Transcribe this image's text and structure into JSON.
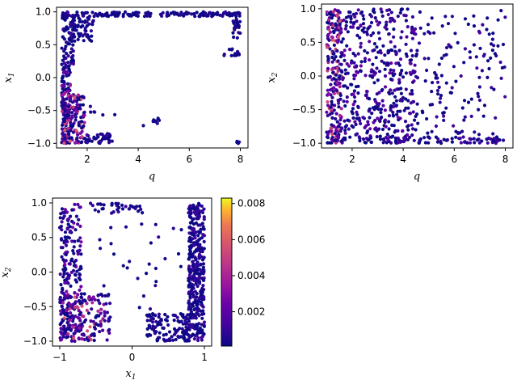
{
  "chart_data": [
    {
      "type": "scatter",
      "panel": "top-left",
      "xlabel": "q",
      "ylabel": "x",
      "ylabel_sub": "1",
      "xlim": [
        0.8,
        8.3
      ],
      "ylim": [
        -1.07,
        1.07
      ],
      "xticks": [
        2,
        4,
        6,
        8
      ],
      "xtick_labels": [
        "2",
        "4",
        "6",
        "8"
      ],
      "yticks": [
        -1.0,
        -0.5,
        0.0,
        0.5,
        1.0
      ],
      "ytick_labels": [
        "−1.0",
        "−0.5",
        "0.0",
        "0.5",
        "1.0"
      ],
      "grid": false,
      "colormap": "plasma",
      "clusters": [
        {
          "x": [
            1.0,
            8.0
          ],
          "y": [
            0.93,
            1.0
          ],
          "n": 180,
          "c": [
            0.0,
            0.001
          ]
        },
        {
          "x": [
            1.0,
            1.5
          ],
          "y": [
            0.2,
            1.0
          ],
          "n": 70,
          "c": [
            0.0,
            0.0015
          ]
        },
        {
          "x": [
            1.4,
            2.3
          ],
          "y": [
            0.55,
            0.95
          ],
          "n": 55,
          "c": [
            0.0,
            0.001
          ]
        },
        {
          "x": [
            7.7,
            8.0
          ],
          "y": [
            0.6,
            1.0
          ],
          "n": 30,
          "c": [
            0.0,
            0.001
          ]
        },
        {
          "x": [
            7.3,
            8.0
          ],
          "y": [
            0.3,
            0.45
          ],
          "n": 14,
          "c": [
            0.0,
            0.001
          ]
        },
        {
          "x": [
            1.0,
            1.35
          ],
          "y": [
            -1.0,
            0.2
          ],
          "n": 110,
          "c": [
            0.0,
            0.004
          ]
        },
        {
          "x": [
            1.0,
            1.9
          ],
          "y": [
            -1.0,
            -0.25
          ],
          "n": 150,
          "c": [
            0.0,
            0.007
          ]
        },
        {
          "x": [
            1.9,
            3.0
          ],
          "y": [
            -1.0,
            -0.85
          ],
          "n": 45,
          "c": [
            0.0,
            0.0015
          ]
        },
        {
          "x": [
            4.2,
            4.9
          ],
          "y": [
            -0.75,
            -0.6
          ],
          "n": 8,
          "c": [
            0.0,
            0.001
          ]
        },
        {
          "x": [
            7.8,
            8.0
          ],
          "y": [
            -1.0,
            -0.95
          ],
          "n": 5,
          "c": [
            0.0,
            0.001
          ]
        },
        {
          "x": [
            2.0,
            3.2
          ],
          "y": [
            -0.6,
            -0.3
          ],
          "n": 6,
          "c": [
            0.0,
            0.001
          ]
        }
      ]
    },
    {
      "type": "scatter",
      "panel": "top-right",
      "xlabel": "q",
      "ylabel": "x",
      "ylabel_sub": "2",
      "xlim": [
        0.8,
        8.3
      ],
      "ylim": [
        -1.07,
        1.07
      ],
      "xticks": [
        2,
        4,
        6,
        8
      ],
      "xtick_labels": [
        "2",
        "4",
        "6",
        "8"
      ],
      "yticks": [
        -1.0,
        -0.5,
        0.0,
        0.5,
        1.0
      ],
      "ytick_labels": [
        "−1.0",
        "−0.5",
        "0.0",
        "0.5",
        "1.0"
      ],
      "grid": false,
      "colormap": "plasma",
      "clusters": [
        {
          "x": [
            1.0,
            1.6
          ],
          "y": [
            -1.0,
            1.0
          ],
          "n": 230,
          "c": [
            0.0,
            0.006
          ]
        },
        {
          "x": [
            1.6,
            4.5
          ],
          "y": [
            -1.0,
            1.0
          ],
          "n": 420,
          "c": [
            0.0,
            0.0025
          ]
        },
        {
          "x": [
            4.5,
            8.0
          ],
          "y": [
            -1.0,
            1.0
          ],
          "n": 150,
          "c": [
            0.0,
            0.0015
          ]
        },
        {
          "x": [
            1.0,
            8.0
          ],
          "y": [
            -1.0,
            -0.9
          ],
          "n": 90,
          "c": [
            0.0,
            0.002
          ]
        }
      ]
    },
    {
      "type": "scatter",
      "panel": "bottom-left",
      "xlabel": "x",
      "xlabel_sub": "1",
      "ylabel": "x",
      "ylabel_sub": "2",
      "xlim": [
        -1.1,
        1.1
      ],
      "ylim": [
        -1.07,
        1.07
      ],
      "xticks": [
        -1,
        0,
        1
      ],
      "xtick_labels": [
        "−1",
        "0",
        "1"
      ],
      "yticks": [
        -1.0,
        -0.5,
        0.0,
        0.5,
        1.0
      ],
      "ytick_labels": [
        "−1.0",
        "−0.5",
        "0.0",
        "0.5",
        "1.0"
      ],
      "grid": false,
      "colormap": "plasma",
      "colorbar": {
        "range": [
          0.0001,
          0.0083
        ],
        "ticks": [
          0.002,
          0.004,
          0.006,
          0.008
        ],
        "tick_labels": [
          "0.002",
          "0.004",
          "0.006",
          "0.008"
        ]
      },
      "clusters": [
        {
          "x": [
            0.78,
            1.0
          ],
          "y": [
            -1.0,
            1.0
          ],
          "n": 380,
          "c": [
            0.0,
            0.0015
          ]
        },
        {
          "x": [
            0.2,
            0.8
          ],
          "y": [
            -1.0,
            -0.6
          ],
          "n": 120,
          "c": [
            0.0,
            0.001
          ]
        },
        {
          "x": [
            -1.0,
            -0.7
          ],
          "y": [
            -1.0,
            1.0
          ],
          "n": 200,
          "c": [
            0.0,
            0.003
          ]
        },
        {
          "x": [
            -1.0,
            -0.3
          ],
          "y": [
            -1.0,
            -0.3
          ],
          "n": 170,
          "c": [
            0.0,
            0.006
          ]
        },
        {
          "x": [
            -0.6,
            0.3
          ],
          "y": [
            0.85,
            1.0
          ],
          "n": 35,
          "c": [
            0.0,
            0.0015
          ]
        },
        {
          "x": [
            -0.6,
            0.7
          ],
          "y": [
            -0.6,
            0.7
          ],
          "n": 30,
          "c": [
            0.0,
            0.001
          ]
        }
      ]
    }
  ]
}
